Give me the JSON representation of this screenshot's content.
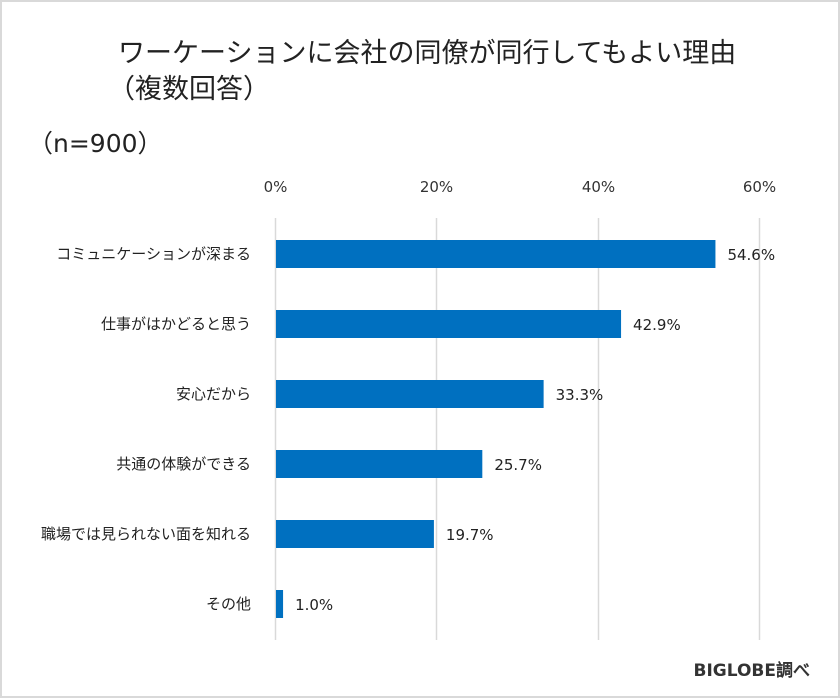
{
  "chart_data": {
    "type": "bar",
    "orientation": "horizontal",
    "title": "ワーケーションに会社の同僚が同行してもよい理由",
    "subtitle": "（複数回答）",
    "sample_size": "（n=900）",
    "categories": [
      "コミュニケーションが深まる",
      "仕事がはかどると思う",
      "安心だから",
      "共通の体験ができる",
      "職場では見られない面を知れる",
      "その他"
    ],
    "values": [
      54.6,
      42.9,
      33.3,
      25.7,
      19.7,
      1.0
    ],
    "value_labels": [
      "54.6%",
      "42.9%",
      "33.3%",
      "25.7%",
      "19.7%",
      "1.0%"
    ],
    "xlim": [
      0,
      60
    ],
    "xticks": [
      0,
      20,
      40,
      60
    ],
    "xtick_labels": [
      "0%",
      "20%",
      "40%",
      "60%"
    ],
    "xaxis_position": "top",
    "grid": true,
    "legend": "none",
    "xlabel": "",
    "ylabel": "",
    "bar_color": "#0070C0",
    "grid_color": "#d9d9d9",
    "source": "BIGLOBE調べ"
  }
}
